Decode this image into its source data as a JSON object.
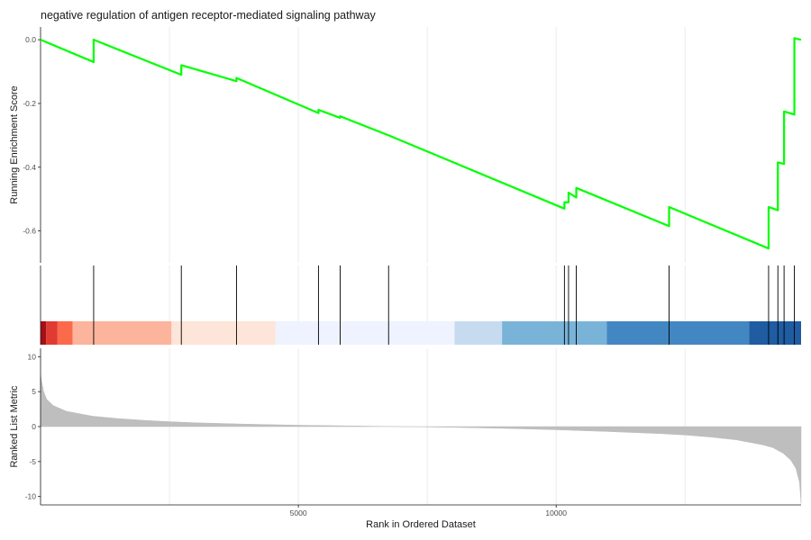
{
  "chart_data": {
    "type": "line",
    "title": "negative regulation of antigen receptor-mediated signaling pathway",
    "ylabel_top": "Running Enrichment Score",
    "ylabel_bottom": "Ranked List Metric",
    "xlabel": "Rank in Ordered Dataset",
    "xlim": [
      0,
      14750
    ],
    "x_ticks": [
      5000,
      10000
    ],
    "x_tick_labels": [
      "5000",
      "10000"
    ],
    "x_gridlines": [
      2500,
      5000,
      7500,
      10000,
      12500
    ],
    "es_ylim": [
      -0.7,
      0.04
    ],
    "es_ticks": [
      0.0,
      -0.2,
      -0.4,
      -0.6
    ],
    "es_tick_labels": [
      "0.0",
      "-0.2",
      "-0.4",
      "-0.6"
    ],
    "metric_ylim": [
      -11.2,
      11.2
    ],
    "metric_ticks": [
      10,
      5,
      0,
      -5,
      -10
    ],
    "metric_tick_labels": [
      "10",
      "5",
      "0",
      "-5",
      "-10"
    ],
    "series": [
      {
        "name": "",
        "color": "#00ff00",
        "x": [
          0,
          1030,
          1030,
          2730,
          2730,
          3800,
          3800,
          5390,
          5390,
          5810,
          5810,
          6750,
          10160,
          10160,
          10240,
          10240,
          10390,
          10390,
          12190,
          12190,
          14120,
          14120,
          14300,
          14300,
          14420,
          14420,
          14620,
          14620,
          14750
        ],
        "values": [
          0.0,
          -0.07,
          0.0,
          -0.11,
          -0.08,
          -0.13,
          -0.12,
          -0.23,
          -0.22,
          -0.245,
          -0.24,
          -0.3,
          -0.53,
          -0.51,
          -0.51,
          -0.48,
          -0.495,
          -0.465,
          -0.585,
          -0.525,
          -0.655,
          -0.525,
          -0.535,
          -0.385,
          -0.39,
          -0.225,
          -0.235,
          0.005,
          0.0
        ]
      }
    ],
    "hits": [
      1030,
      2730,
      3800,
      5390,
      5810,
      6750,
      10160,
      10240,
      10390,
      12190,
      14120,
      14300,
      14420,
      14620
    ],
    "color_bands": [
      {
        "from": 0,
        "to": 110,
        "color": "#a50f15"
      },
      {
        "from": 110,
        "to": 330,
        "color": "#e03b33"
      },
      {
        "from": 330,
        "to": 620,
        "color": "#fb6a4a"
      },
      {
        "from": 620,
        "to": 2540,
        "color": "#fcb49c"
      },
      {
        "from": 2540,
        "to": 4560,
        "color": "#fee5d9"
      },
      {
        "from": 4560,
        "to": 8030,
        "color": "#eff3ff"
      },
      {
        "from": 8030,
        "to": 8950,
        "color": "#c6dbef"
      },
      {
        "from": 8950,
        "to": 10980,
        "color": "#7ab3d8"
      },
      {
        "from": 10980,
        "to": 13740,
        "color": "#4287c2"
      },
      {
        "from": 13740,
        "to": 14750,
        "color": "#1f5ca1"
      }
    ],
    "ranked_metric": {
      "color": "#bebebe",
      "x": [
        0,
        20,
        60,
        120,
        250,
        500,
        1000,
        1500,
        2000,
        2500,
        3000,
        4000,
        5000,
        6000,
        7000,
        8000,
        9000,
        10000,
        11000,
        12000,
        12500,
        13000,
        13500,
        14000,
        14200,
        14400,
        14550,
        14650,
        14720,
        14750
      ],
      "values": [
        7.5,
        6.5,
        5.0,
        3.9,
        3.0,
        2.2,
        1.5,
        1.15,
        0.9,
        0.7,
        0.55,
        0.35,
        0.2,
        0.1,
        0.0,
        -0.1,
        -0.25,
        -0.45,
        -0.7,
        -1.0,
        -1.2,
        -1.5,
        -1.9,
        -2.6,
        -3.0,
        -3.8,
        -4.8,
        -6.0,
        -8.0,
        -11.0
      ]
    }
  }
}
